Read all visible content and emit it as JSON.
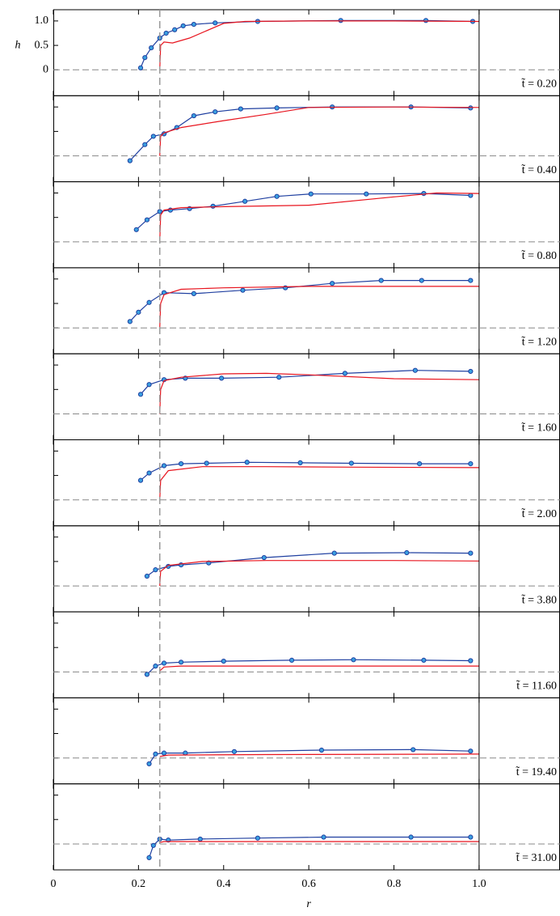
{
  "chart_data": [
    {
      "type": "line",
      "annotation": "t̃ = 0.20",
      "ylabel": "h",
      "xlim": [
        0,
        1.19
      ],
      "ylim": [
        -0.53,
        1.23
      ],
      "yticks": [
        0,
        0.5,
        {
          "value": 1,
          "label": "1.0"
        }
      ],
      "x_marker": 0.25,
      "series": [
        {
          "color": "#1f3fa0",
          "marker": true,
          "x": [
            0.205,
            0.215,
            0.23,
            0.25,
            0.265,
            0.285,
            0.305,
            0.33,
            0.38,
            0.48,
            0.675,
            0.875,
            0.985
          ],
          "values": [
            0.04,
            0.25,
            0.45,
            0.65,
            0.75,
            0.82,
            0.9,
            0.93,
            0.96,
            0.99,
            1.01,
            1.01,
            0.99
          ]
        },
        {
          "color": "#e8141e",
          "x": [
            0.25,
            0.252,
            0.26,
            0.28,
            0.32,
            0.4,
            0.45,
            0.6,
            0.8,
            1.0
          ],
          "values": [
            0,
            0.5,
            0.57,
            0.55,
            0.65,
            0.95,
            0.99,
            1.0,
            1.0,
            0.99
          ]
        }
      ]
    },
    {
      "type": "line",
      "annotation": "t̃ = 0.40",
      "xlim": [
        0,
        1.19
      ],
      "ylim": [
        -0.53,
        1.23
      ],
      "series": [
        {
          "color": "#1f3fa0",
          "marker": true,
          "x": [
            0.18,
            0.215,
            0.235,
            0.26,
            0.29,
            0.33,
            0.38,
            0.44,
            0.525,
            0.655,
            0.84,
            0.98
          ],
          "values": [
            -0.1,
            0.23,
            0.4,
            0.45,
            0.58,
            0.82,
            0.9,
            0.96,
            0.98,
            1.0,
            1.0,
            0.98
          ]
        },
        {
          "color": "#e8141e",
          "x": [
            0.25,
            0.252,
            0.26,
            0.3,
            0.4,
            0.5,
            0.6,
            0.8,
            1.0
          ],
          "values": [
            0,
            0.4,
            0.47,
            0.58,
            0.72,
            0.85,
            0.99,
            1.0,
            0.99
          ]
        }
      ]
    },
    {
      "type": "line",
      "annotation": "t̃ = 0.80",
      "xlim": [
        0,
        1.19
      ],
      "ylim": [
        -0.53,
        1.23
      ],
      "series": [
        {
          "color": "#1f3fa0",
          "marker": true,
          "x": [
            0.195,
            0.22,
            0.25,
            0.275,
            0.32,
            0.375,
            0.45,
            0.525,
            0.605,
            0.735,
            0.87,
            0.98
          ],
          "values": [
            0.25,
            0.45,
            0.62,
            0.65,
            0.68,
            0.73,
            0.83,
            0.93,
            0.98,
            0.98,
            0.99,
            0.95
          ]
        },
        {
          "color": "#e8141e",
          "x": [
            0.25,
            0.252,
            0.26,
            0.3,
            0.4,
            0.6,
            0.8,
            0.9,
            1.0
          ],
          "values": [
            0,
            0.55,
            0.65,
            0.7,
            0.72,
            0.75,
            0.92,
            1.0,
            0.99
          ]
        }
      ]
    },
    {
      "type": "line",
      "annotation": "t̃ = 1.20",
      "xlim": [
        0,
        1.19
      ],
      "ylim": [
        -0.53,
        1.23
      ],
      "series": [
        {
          "color": "#1f3fa0",
          "marker": true,
          "x": [
            0.18,
            0.2,
            0.225,
            0.26,
            0.33,
            0.445,
            0.545,
            0.655,
            0.77,
            0.865,
            0.98
          ],
          "values": [
            0.13,
            0.32,
            0.52,
            0.72,
            0.7,
            0.77,
            0.82,
            0.91,
            0.97,
            0.97,
            0.97
          ]
        },
        {
          "color": "#e8141e",
          "x": [
            0.25,
            0.252,
            0.26,
            0.3,
            0.4,
            0.6,
            0.8,
            1.0
          ],
          "values": [
            0,
            0.5,
            0.68,
            0.79,
            0.82,
            0.85,
            0.85,
            0.85
          ]
        }
      ]
    },
    {
      "type": "line",
      "annotation": "t̃ = 1.60",
      "xlim": [
        0,
        1.19
      ],
      "ylim": [
        -0.53,
        1.23
      ],
      "series": [
        {
          "color": "#1f3fa0",
          "marker": true,
          "x": [
            0.205,
            0.225,
            0.26,
            0.31,
            0.395,
            0.53,
            0.685,
            0.85,
            0.98
          ],
          "values": [
            0.4,
            0.6,
            0.7,
            0.73,
            0.73,
            0.75,
            0.83,
            0.89,
            0.87
          ]
        },
        {
          "color": "#e8141e",
          "x": [
            0.25,
            0.252,
            0.26,
            0.3,
            0.4,
            0.5,
            0.6,
            0.8,
            1.0
          ],
          "values": [
            0,
            0.5,
            0.68,
            0.75,
            0.82,
            0.83,
            0.8,
            0.72,
            0.7
          ]
        }
      ]
    },
    {
      "type": "line",
      "annotation": "t̃ = 2.00",
      "xlim": [
        0,
        1.19
      ],
      "ylim": [
        -0.53,
        1.23
      ],
      "series": [
        {
          "color": "#1f3fa0",
          "marker": true,
          "x": [
            0.205,
            0.225,
            0.26,
            0.3,
            0.36,
            0.455,
            0.58,
            0.7,
            0.86,
            0.98
          ],
          "values": [
            0.4,
            0.55,
            0.7,
            0.74,
            0.75,
            0.77,
            0.76,
            0.75,
            0.74,
            0.74
          ]
        },
        {
          "color": "#e8141e",
          "x": [
            0.25,
            0.252,
            0.27,
            0.35,
            0.5,
            0.7,
            1.0
          ],
          "values": [
            0,
            0.4,
            0.6,
            0.68,
            0.68,
            0.67,
            0.66
          ]
        }
      ]
    },
    {
      "type": "line",
      "annotation": "t̃ = 3.80",
      "xlim": [
        0,
        1.19
      ],
      "ylim": [
        -0.53,
        1.23
      ],
      "series": [
        {
          "color": "#1f3fa0",
          "marker": true,
          "x": [
            0.22,
            0.24,
            0.27,
            0.3,
            0.365,
            0.495,
            0.66,
            0.83,
            0.98
          ],
          "values": [
            0.2,
            0.33,
            0.4,
            0.43,
            0.47,
            0.58,
            0.67,
            0.68,
            0.67
          ]
        },
        {
          "color": "#e8141e",
          "x": [
            0.25,
            0.252,
            0.27,
            0.35,
            0.5,
            0.8,
            1.0
          ],
          "values": [
            0,
            0.3,
            0.42,
            0.5,
            0.52,
            0.52,
            0.51
          ]
        }
      ]
    },
    {
      "type": "line",
      "annotation": "t̃ = 11.60",
      "xlim": [
        0,
        1.19
      ],
      "ylim": [
        -0.53,
        1.23
      ],
      "series": [
        {
          "color": "#1f3fa0",
          "marker": true,
          "x": [
            0.22,
            0.24,
            0.26,
            0.3,
            0.4,
            0.56,
            0.705,
            0.87,
            0.98
          ],
          "values": [
            -0.05,
            0.12,
            0.18,
            0.2,
            0.22,
            0.24,
            0.25,
            0.24,
            0.23
          ]
        },
        {
          "color": "#e8141e",
          "x": [
            0.25,
            0.26,
            0.3,
            0.5,
            1.0
          ],
          "values": [
            0.02,
            0.1,
            0.12,
            0.12,
            0.12
          ]
        }
      ]
    },
    {
      "type": "line",
      "annotation": "t̃ = 19.40",
      "xlim": [
        0,
        1.19
      ],
      "ylim": [
        -0.53,
        1.23
      ],
      "series": [
        {
          "color": "#1f3fa0",
          "marker": true,
          "x": [
            0.225,
            0.24,
            0.26,
            0.31,
            0.425,
            0.63,
            0.845,
            0.98
          ],
          "values": [
            -0.12,
            0.08,
            0.1,
            0.1,
            0.13,
            0.16,
            0.17,
            0.14
          ]
        },
        {
          "color": "#e8141e",
          "x": [
            0.25,
            0.27,
            0.5,
            1.0
          ],
          "values": [
            0.03,
            0.06,
            0.07,
            0.08
          ]
        }
      ]
    },
    {
      "type": "line",
      "annotation": "t̃ = 31.00",
      "xlabel": "r",
      "xlim": [
        0,
        1.19
      ],
      "ylim": [
        -0.53,
        1.23
      ],
      "xticks": [
        0,
        0.2,
        0.4,
        0.6,
        0.8,
        {
          "value": 1,
          "label": "1.0"
        }
      ],
      "series": [
        {
          "color": "#1f3fa0",
          "marker": true,
          "x": [
            0.225,
            0.235,
            0.25,
            0.27,
            0.345,
            0.48,
            0.635,
            0.84,
            0.98
          ],
          "values": [
            -0.28,
            -0.03,
            0.1,
            0.08,
            0.1,
            0.12,
            0.14,
            0.14,
            0.14
          ]
        },
        {
          "color": "#e8141e",
          "x": [
            0.25,
            0.26,
            0.5,
            1.0
          ],
          "values": [
            0.03,
            0.05,
            0.05,
            0.05
          ]
        }
      ]
    }
  ]
}
